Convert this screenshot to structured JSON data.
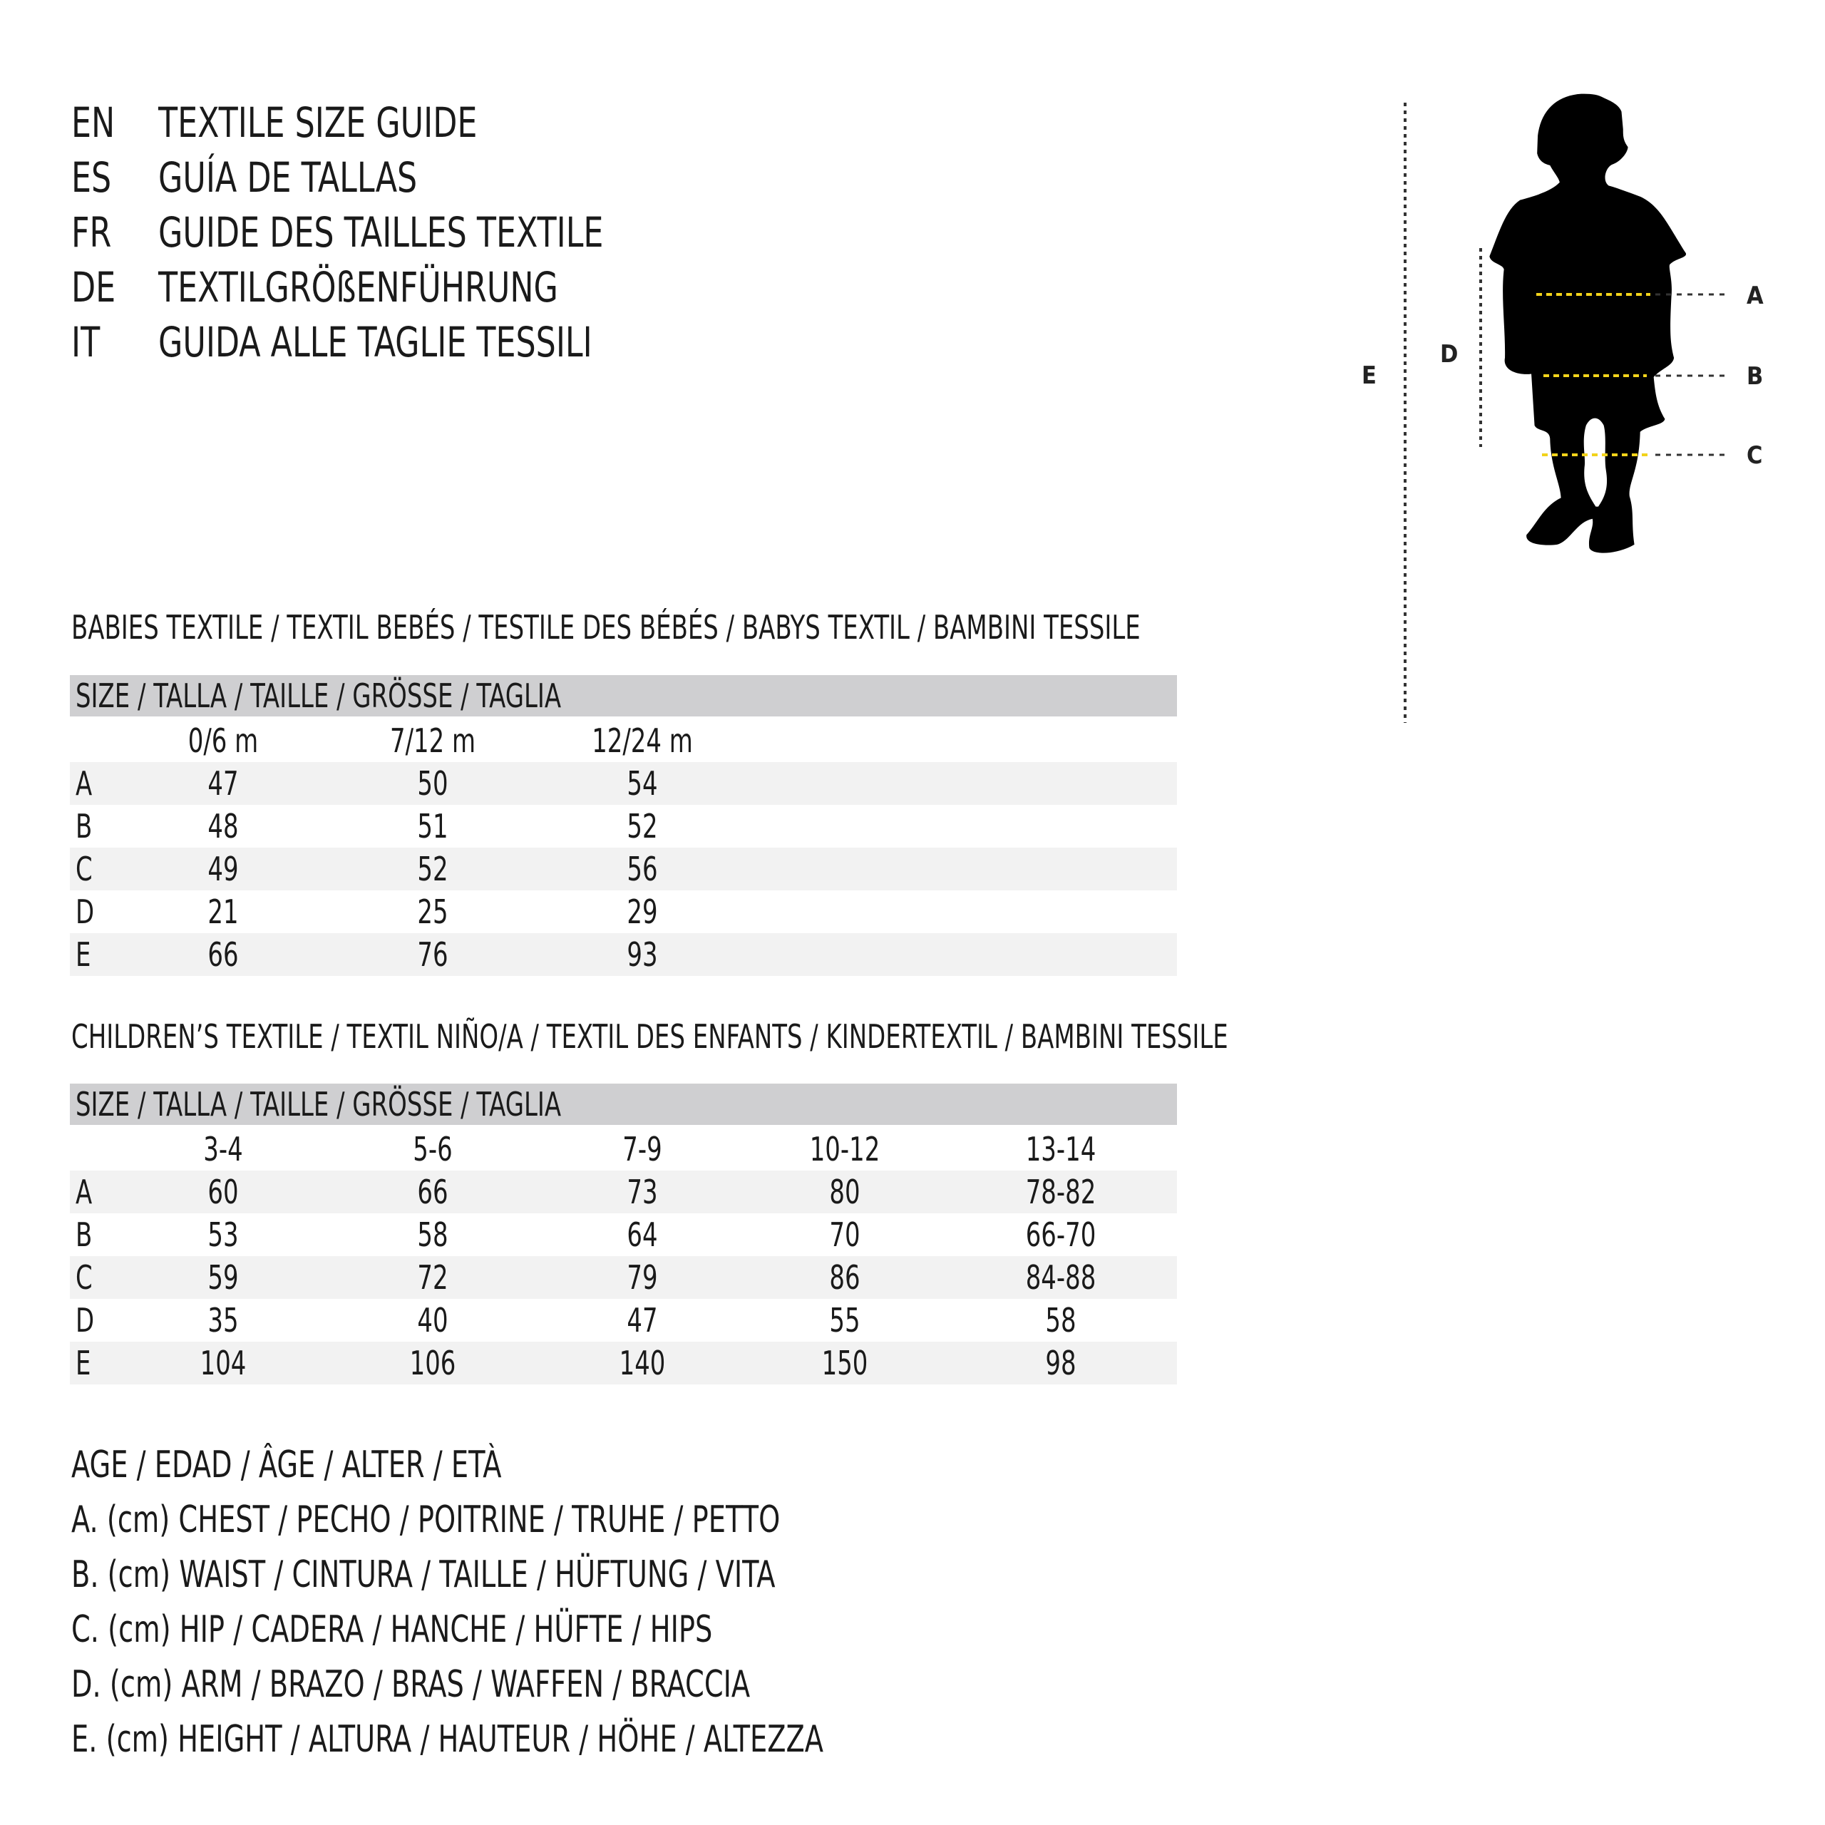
{
  "titles": [
    {
      "code": "EN",
      "text": "TEXTILE SIZE GUIDE"
    },
    {
      "code": "ES",
      "text": "GUÍA DE TALLAS"
    },
    {
      "code": "FR",
      "text": "GUIDE DES TAILLES TEXTILE"
    },
    {
      "code": "DE",
      "text": "TEXTILGRÖßENFÜHRUNG"
    },
    {
      "code": "IT",
      "text": "GUIDA ALLE TAGLIE TESSILI"
    }
  ],
  "babies": {
    "heading": "BABIES TEXTILE / TEXTIL BEBÉS / TESTILE DES BÉBÉS / BABYS TEXTIL / BAMBINI TESSILE",
    "size_header": "SIZE / TALLA / TAILLE / GRÖSSE / TAGLIA",
    "columns": [
      "0/6 m",
      "7/12 m",
      "12/24 m"
    ],
    "rows": [
      {
        "label": "A",
        "values": [
          "47",
          "50",
          "54"
        ]
      },
      {
        "label": "B",
        "values": [
          "48",
          "51",
          "52"
        ]
      },
      {
        "label": "C",
        "values": [
          "49",
          "52",
          "56"
        ]
      },
      {
        "label": "D",
        "values": [
          "21",
          "25",
          "29"
        ]
      },
      {
        "label": "E",
        "values": [
          "66",
          "76",
          "93"
        ]
      }
    ]
  },
  "children": {
    "heading": "CHILDREN’S TEXTILE / TEXTIL NIÑO/A / TEXTIL DES ENFANTS / KINDERTEXTIL / BAMBINI TESSILE",
    "size_header": "SIZE / TALLA / TAILLE / GRÖSSE / TAGLIA",
    "columns": [
      "3-4",
      "5-6",
      "7-9",
      "10-12",
      "13-14"
    ],
    "rows": [
      {
        "label": "A",
        "values": [
          "60",
          "66",
          "73",
          "80",
          "78-82"
        ]
      },
      {
        "label": "B",
        "values": [
          "53",
          "58",
          "64",
          "70",
          "66-70"
        ]
      },
      {
        "label": "C",
        "values": [
          "59",
          "72",
          "79",
          "86",
          "84-88"
        ]
      },
      {
        "label": "D",
        "values": [
          "35",
          "40",
          "47",
          "55",
          "58"
        ]
      },
      {
        "label": "E",
        "values": [
          "104",
          "106",
          "140",
          "150",
          "98"
        ]
      }
    ]
  },
  "legend": [
    "AGE / EDAD / ÂGE / ALTER / ETÀ",
    "A. (cm) CHEST / PECHO / POITRINE / TRUHE / PETTO",
    "B. (cm) WAIST / CINTURA / TAILLE / HÜFTUNG / VITA",
    "C. (cm) HIP / CADERA / HANCHE / HÜFTE / HIPS",
    "D. (cm) ARM / BRAZO / BRAS / WAFFEN / BRACCIA",
    "E. (cm) HEIGHT / ALTURA / HAUTEUR / HÖHE / ALTEZZA"
  ],
  "figure": {
    "labels": {
      "a": "A",
      "b": "B",
      "c": "C",
      "d": "D",
      "e": "E"
    },
    "icon": "child-silhouette-icon",
    "colors": {
      "measure_line": "#f2d31b",
      "silhouette": "#000000",
      "table_header": "#cfcfd1",
      "row_shade": "#f2f2f2"
    }
  }
}
